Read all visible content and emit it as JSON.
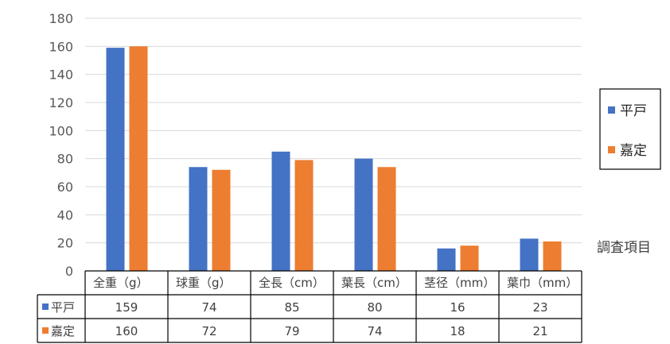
{
  "chart_data": {
    "type": "bar",
    "categories": [
      "全重（g）",
      "球重（g）",
      "全長（cm）",
      "葉長（cm）",
      "茎径（mm）",
      "葉巾（mm）"
    ],
    "series": [
      {
        "name": "平戸",
        "color": "#4472C4",
        "values": [
          159,
          74,
          85,
          80,
          16,
          23
        ]
      },
      {
        "name": "嘉定",
        "color": "#ED7D31",
        "values": [
          160,
          72,
          79,
          74,
          18,
          21
        ]
      }
    ],
    "ylim": [
      0,
      180
    ],
    "yticks": [
      "0",
      "20",
      "40",
      "60",
      "80",
      "100",
      "120",
      "140",
      "160",
      "180"
    ],
    "xlabel": "調査項目",
    "grid": true,
    "legend_position": "right",
    "data_table": true,
    "table_values": [
      [
        "159",
        "74",
        "85",
        "80",
        "16",
        "23"
      ],
      [
        "160",
        "72",
        "79",
        "74",
        "18",
        "21"
      ]
    ]
  }
}
